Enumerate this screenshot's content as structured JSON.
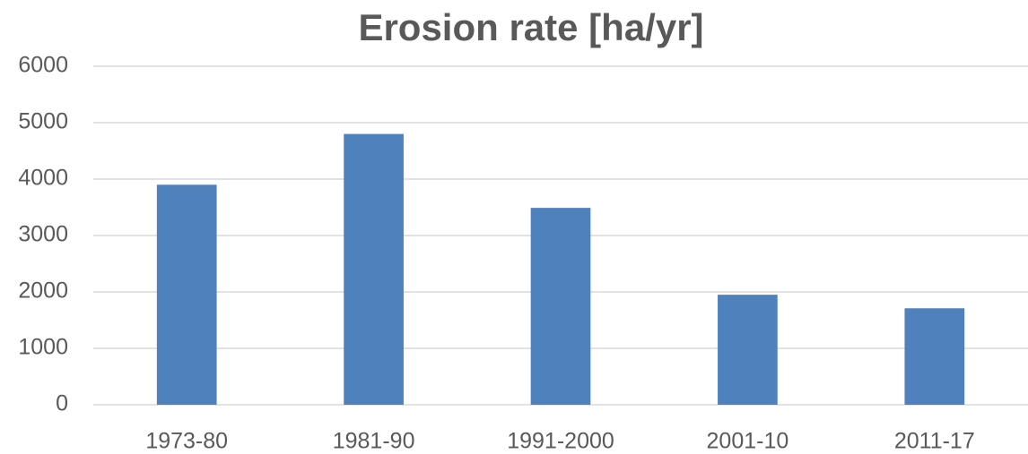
{
  "chart_data": {
    "type": "bar",
    "title": "Erosion rate [ha/yr]",
    "categories": [
      "1973-80",
      "1981-90",
      "1991-2000",
      "2001-10",
      "2011-17"
    ],
    "values": [
      3900,
      4800,
      3490,
      1950,
      1710
    ],
    "color": "#4f81bd",
    "ylim": [
      0,
      6000
    ],
    "yticks": [
      0,
      1000,
      2000,
      3000,
      4000,
      5000,
      6000
    ],
    "grid": true
  }
}
